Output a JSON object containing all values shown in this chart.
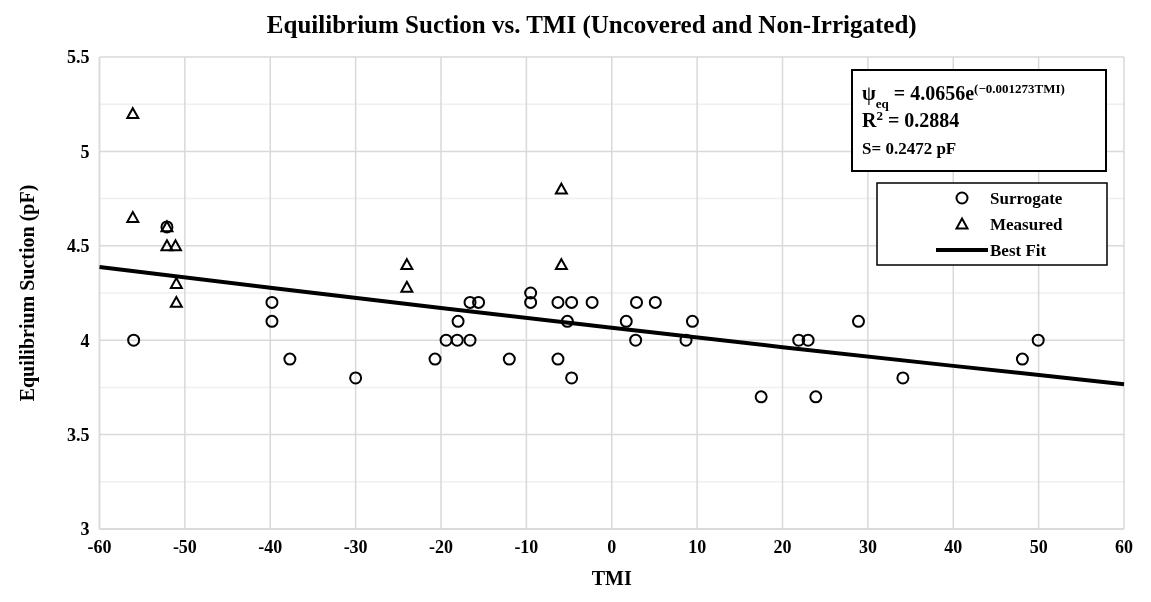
{
  "chart_data": {
    "type": "scatter",
    "title": "Equilibrium Suction vs. TMI (Uncovered and Non-Irrigated)",
    "xlabel": "TMI",
    "ylabel": "Equilibrium Suction (pF)",
    "xlim": [
      -60,
      60
    ],
    "xticks": [
      -60,
      -50,
      -40,
      -30,
      -20,
      -10,
      0,
      10,
      20,
      30,
      40,
      50,
      60
    ],
    "ylim": [
      3,
      5.5
    ],
    "yticks": [
      3,
      {
        "value": 3.25,
        "label": null
      },
      3.5,
      {
        "value": 3.75,
        "label": null
      },
      4,
      {
        "value": 4.25,
        "label": null
      },
      4.5,
      {
        "value": 4.75,
        "label": null
      },
      5,
      {
        "value": 5.25,
        "label": null
      },
      5.5
    ],
    "grid": true,
    "legend": "top right",
    "annotations": [
      "ψ$_{eq}$ = 4.0656e$^{(−0.001273TMI)}$",
      "R$^{2}$ = 0.2884",
      "S= 0.2472 pF"
    ],
    "series": [
      {
        "name": "Surrogate",
        "marker": "circle",
        "color": "#000000",
        "x": [
          -56,
          -52.1,
          -39.8,
          -39.8,
          -37.7,
          -30,
          -20.7,
          -19.4,
          -18.1,
          -18,
          -16.6,
          -16.6,
          -15.6,
          -12,
          -9.5,
          -9.5,
          -6.3,
          -6.3,
          -5.2,
          -4.7,
          -4.7,
          -2.3,
          1.7,
          2.8,
          2.9,
          5.1,
          8.7,
          9.45,
          17.5,
          21.9,
          23,
          23.9,
          28.9,
          34.1,
          48.1,
          49.95
        ],
        "values": [
          4.0,
          4.6,
          4.2,
          4.1,
          3.9,
          3.8,
          3.9,
          4.0,
          4.0,
          4.1,
          4.0,
          4.2,
          4.2,
          3.9,
          4.2,
          4.25,
          4.2,
          3.9,
          4.1,
          4.2,
          3.8,
          4.2,
          4.1,
          4.0,
          4.2,
          4.2,
          4.0,
          4.1,
          3.7,
          4.0,
          4.0,
          3.7,
          4.1,
          3.8,
          3.9,
          4.0
        ]
      },
      {
        "name": "Measured",
        "marker": "triangle",
        "color": "#000000",
        "x": [
          -56.1,
          -56.1,
          -52.1,
          -52.1,
          -51.1,
          -51,
          -51,
          -24,
          -24,
          -5.9,
          -5.9
        ],
        "values": [
          5.2,
          4.65,
          4.6,
          4.5,
          4.5,
          4.3,
          4.2,
          4.4,
          4.28,
          4.8,
          4.4
        ]
      },
      {
        "name": "Best Fit",
        "type": "line",
        "marker": "none",
        "line_style": "solid",
        "color": "#000000",
        "x": [
          -60,
          -40,
          -20,
          0,
          20,
          40,
          60
        ],
        "values": [
          4.388,
          4.278,
          4.17,
          4.066,
          3.963,
          3.864,
          3.767
        ]
      }
    ]
  }
}
